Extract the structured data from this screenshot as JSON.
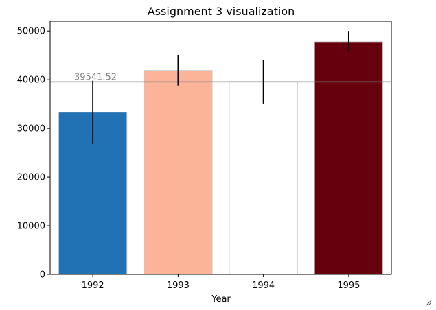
{
  "chart_data": {
    "type": "bar",
    "title": "Assignment 3 visualization",
    "xlabel": "Year",
    "ylabel": "",
    "categories": [
      "1992",
      "1993",
      "1994",
      "1995"
    ],
    "values": [
      33300,
      41900,
      39600,
      47800
    ],
    "error_low": [
      26800,
      38800,
      35100,
      45600
    ],
    "error_high": [
      39800,
      45100,
      44000,
      50000
    ],
    "bar_colors": [
      "#2171b5",
      "#fcb499",
      "#ffffff",
      "#67000d"
    ],
    "bar_edge_color": "#cccccc",
    "ylim": [
      0,
      52000
    ],
    "yticks": [
      0,
      10000,
      20000,
      30000,
      40000,
      50000
    ],
    "reference_line": {
      "value": 39541.52,
      "label": "39541.52",
      "color": "#808080"
    },
    "grid": false,
    "legend": "none"
  },
  "window": {
    "resize_grip_icon": "resize-grip-icon"
  }
}
